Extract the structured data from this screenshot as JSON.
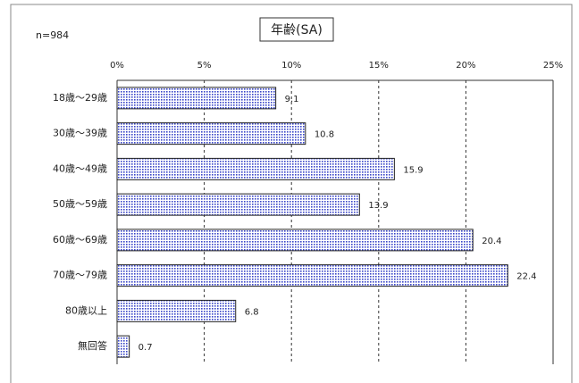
{
  "chart_data": {
    "type": "bar",
    "orientation": "horizontal",
    "title": "年齢(SA)",
    "note": "n=984",
    "categories": [
      "18歳～29歳",
      "30歳～39歳",
      "40歳～49歳",
      "50歳～59歳",
      "60歳～69歳",
      "70歳～79歳",
      "80歳以上",
      "無回答"
    ],
    "values": [
      9.1,
      10.8,
      15.9,
      13.9,
      20.4,
      22.4,
      6.8,
      0.7
    ],
    "color": "#3a46c8",
    "xlim": [
      0,
      25
    ],
    "xticks": [
      {
        "value": 0,
        "label": "0%"
      },
      {
        "value": 5,
        "label": "5%"
      },
      {
        "value": 10,
        "label": "10%"
      },
      {
        "value": 15,
        "label": "15%"
      },
      {
        "value": 20,
        "label": "20%"
      },
      {
        "value": 25,
        "label": "25%"
      }
    ],
    "grid": true
  }
}
